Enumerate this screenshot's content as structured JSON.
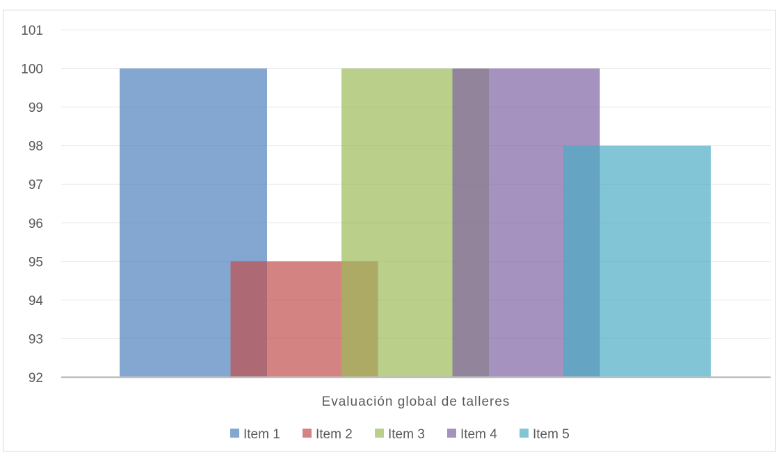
{
  "chart_data": {
    "type": "bar",
    "categories": [
      "Evaluación global de talleres"
    ],
    "series": [
      {
        "name": "Item 1",
        "values": [
          100
        ],
        "color": "#4f81bd"
      },
      {
        "name": "Item 2",
        "values": [
          95
        ],
        "color": "#c0504d"
      },
      {
        "name": "Item 3",
        "values": [
          100
        ],
        "color": "#9bbb59"
      },
      {
        "name": "Item 4",
        "values": [
          100
        ],
        "color": "#8064a2"
      },
      {
        "name": "Item 5",
        "values": [
          98
        ],
        "color": "#4bacc6"
      }
    ],
    "ylim": [
      92,
      101
    ],
    "yticks": [
      "92",
      "93",
      "94",
      "95",
      "96",
      "97",
      "98",
      "99",
      "100",
      "101"
    ],
    "bar_opacity": 0.7,
    "grid": true,
    "legend": "bottom"
  }
}
